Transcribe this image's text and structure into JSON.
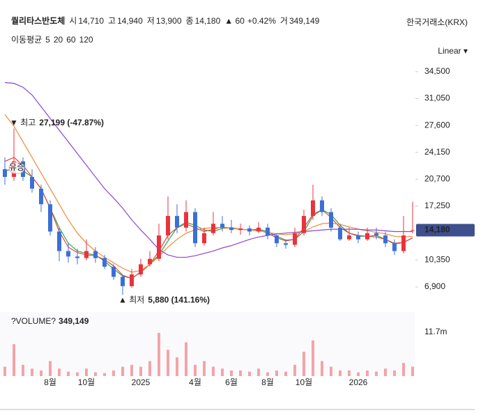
{
  "chart_data": {
    "type": "candlestick",
    "title": "퀄리타스반도체",
    "quote": [
      {
        "label": "시",
        "value": "14,710"
      },
      {
        "label": "고",
        "value": "14,940"
      },
      {
        "label": "저",
        "value": "13,900"
      },
      {
        "label": "종",
        "value": "14,180"
      }
    ],
    "change": "▲ 60",
    "change_pct": "+0.42%",
    "volume_quote": {
      "label": "거",
      "value": "349,149"
    },
    "exchange": "한국거래소(KRX)",
    "ma_label": "이동평균",
    "scale": "Linear ▾",
    "categories": [
      null,
      null,
      null,
      null,
      null,
      "8월",
      null,
      null,
      null,
      "10월",
      null,
      null,
      null,
      null,
      null,
      "2025",
      null,
      null,
      null,
      null,
      null,
      "4월",
      null,
      null,
      null,
      "6월",
      null,
      null,
      null,
      "8월",
      null,
      null,
      null,
      "10월",
      null,
      null,
      null,
      null,
      null,
      "2026",
      null,
      null,
      null,
      null,
      null,
      null
    ],
    "open": [
      22000,
      21000,
      23000,
      21000,
      19500,
      17500,
      14000,
      11500,
      10800,
      10600,
      11500,
      10600,
      9500,
      8200,
      7000,
      8500,
      9800,
      10500,
      13500,
      16000,
      14500,
      16500,
      12500,
      13800,
      15000,
      14500,
      14200,
      14400,
      14000,
      14500,
      13500,
      12500,
      12300,
      13800,
      16000,
      18000,
      16500,
      14500,
      13000,
      13500,
      13000,
      13800,
      13500,
      12500,
      11500,
      14120
    ],
    "high": [
      23500,
      27199,
      23500,
      22000,
      20000,
      18000,
      14500,
      12500,
      11800,
      13000,
      12000,
      11000,
      9800,
      8500,
      9200,
      10500,
      11500,
      15000,
      18500,
      17500,
      18000,
      17000,
      14500,
      16500,
      16000,
      15500,
      15000,
      14800,
      15200,
      15000,
      13800,
      13000,
      14500,
      16800,
      20000,
      18500,
      17000,
      15000,
      14500,
      14000,
      14500,
      14500,
      14000,
      13000,
      16000,
      17800
    ],
    "low": [
      20000,
      20500,
      20500,
      19000,
      16500,
      13500,
      10200,
      10000,
      9800,
      10300,
      10000,
      9200,
      7800,
      5880,
      6800,
      8200,
      9500,
      10200,
      13000,
      13800,
      14000,
      12000,
      12200,
      13500,
      14000,
      13800,
      13600,
      13500,
      13800,
      13000,
      12000,
      11800,
      12000,
      13500,
      15500,
      16000,
      14000,
      12800,
      12800,
      12500,
      12800,
      13000,
      12000,
      11000,
      11200,
      13800
    ],
    "close": [
      21000,
      23000,
      21000,
      19500,
      17500,
      14000,
      11500,
      10800,
      10600,
      11500,
      10600,
      9500,
      8200,
      7000,
      8500,
      9800,
      10500,
      13500,
      16000,
      14500,
      16500,
      12500,
      13800,
      15000,
      14500,
      14200,
      14400,
      14000,
      14500,
      13500,
      12500,
      12300,
      13800,
      16000,
      18000,
      16500,
      14500,
      13000,
      13500,
      13000,
      13800,
      13500,
      12500,
      11500,
      13500,
      14180
    ],
    "up_color": "#e8333d",
    "down_color": "#3a6fd8",
    "series": [
      {
        "name": "5",
        "color": "#2aa84a",
        "values": [
          21800,
          22000,
          21800,
          21000,
          19500,
          17000,
          14500,
          12500,
          11500,
          11200,
          11000,
          10200,
          9200,
          8300,
          8000,
          8800,
          9800,
          11000,
          12800,
          14500,
          15200,
          14800,
          14200,
          14000,
          14400,
          14500,
          14300,
          14200,
          14300,
          14000,
          13400,
          12900,
          13000,
          14000,
          16000,
          16800,
          16200,
          14800,
          13800,
          13400,
          13400,
          13500,
          13000,
          12400,
          12600,
          13200
        ]
      },
      {
        "name": "20",
        "color": "#e8433e",
        "values": [
          23000,
          23500,
          22500,
          21000,
          19500,
          17000,
          14000,
          12000,
          11300,
          11000,
          10900,
          10400,
          9600,
          8400,
          8000,
          8800,
          9800,
          11500,
          13500,
          14500,
          15000,
          14500,
          14000,
          14300,
          14600,
          14400,
          14300,
          14200,
          14200,
          13800,
          13200,
          12800,
          13000,
          14500,
          16200,
          16800,
          15800,
          14500,
          13800,
          13500,
          13400,
          13300,
          13000,
          12500,
          12600,
          13200
        ]
      },
      {
        "name": "60",
        "color": "#f08a3c",
        "values": [
          29000,
          27500,
          25500,
          23500,
          21500,
          19500,
          17500,
          15500,
          13800,
          12500,
          11500,
          10700,
          10000,
          9300,
          8800,
          9000,
          9800,
          10800,
          12000,
          13000,
          13800,
          14200,
          14400,
          14500,
          14500,
          14400,
          14300,
          14200,
          14100,
          13900,
          13700,
          13600,
          13700,
          14000,
          14600,
          15000,
          15100,
          14900,
          14600,
          14300,
          14100,
          13900,
          13700,
          13400,
          13300,
          13400
        ]
      },
      {
        "name": "120",
        "color": "#8a45d6",
        "values": [
          33100,
          33000,
          32500,
          31500,
          30000,
          28500,
          27000,
          25500,
          24000,
          22500,
          21000,
          19500,
          18300,
          17000,
          15500,
          14200,
          13000,
          11700,
          11000,
          10700,
          10700,
          10900,
          11200,
          11500,
          11900,
          12200,
          12600,
          13000,
          13300,
          13500,
          13700,
          13800,
          13900,
          14000,
          14100,
          14200,
          14300,
          14300,
          14300,
          14300,
          14200,
          14200,
          14100,
          14000,
          14000,
          14000
        ]
      }
    ],
    "ylim": [
      4400,
      35200
    ],
    "yticks": [
      {
        "value": 6900,
        "label": "6,900"
      },
      {
        "value": 10350,
        "label": "10,350"
      },
      {
        "value": 17250,
        "label": "17,250"
      },
      {
        "value": 20700,
        "label": "20,700"
      },
      {
        "value": 24150,
        "label": "24,150"
      },
      {
        "value": 27600,
        "label": "27,600"
      },
      {
        "value": 31050,
        "label": "31,050"
      },
      {
        "value": 34500,
        "label": "34,500"
      }
    ],
    "last_price": {
      "value": 14180,
      "label": "14,180",
      "color": "#3d4f8f"
    },
    "annotations": [
      {
        "index": 1,
        "value": 27199,
        "marker": "▼ 최고",
        "label": "27,199 (-47.87%)",
        "position": "above"
      },
      {
        "index": 13,
        "value": 5880,
        "marker": "▲ 최저",
        "label": "5,880 (141.16%)",
        "position": "below"
      }
    ],
    "badge": {
      "index": 1,
      "label": "유증"
    },
    "volume": {
      "title": "?VOLUME?",
      "color": "#f3a3a8",
      "values": [
        2.5,
        8.5,
        3,
        2,
        1.5,
        4,
        2,
        1.2,
        1,
        2,
        1,
        0.8,
        1.5,
        2.5,
        3,
        2.5,
        4,
        11.5,
        7,
        5,
        9,
        3,
        4,
        2.5,
        2,
        1.5,
        1.5,
        1.2,
        2,
        1,
        1.5,
        1.2,
        3,
        6.5,
        9.5,
        4,
        2.5,
        1.5,
        1.5,
        1,
        1.5,
        1.2,
        2,
        1.5,
        3.5,
        2.5
      ],
      "ylim": [
        0,
        16.7
      ],
      "yticks": [
        {
          "value": 11.7,
          "label": "11.7m"
        }
      ]
    }
  }
}
